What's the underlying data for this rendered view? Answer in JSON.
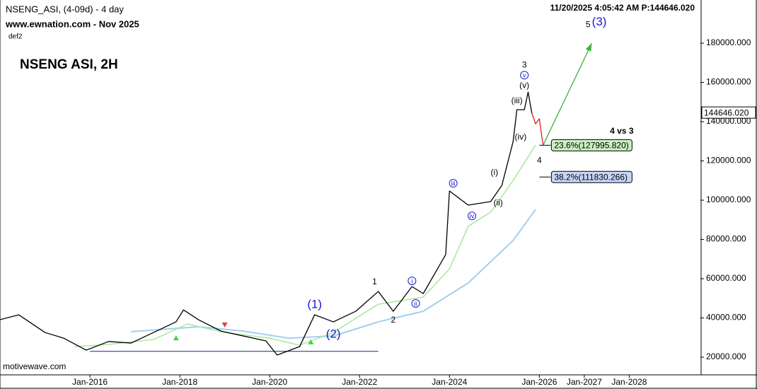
{
  "chart_data": {
    "type": "line",
    "header": {
      "symbol": "NSENG_ASI, (4-09d) - 4 day",
      "source": "www.ewnation.com  - Nov 2025",
      "layout": "def2",
      "title": "NSENG ASI, 2H",
      "status": "11/20/2025 4:05:42 AM P:144646.020",
      "footer": "motivewave.com"
    },
    "xlim": [
      "2014-01",
      "2029-08"
    ],
    "xticks": [
      {
        "value": "2016-01",
        "label": "Jan-2016"
      },
      {
        "value": "2018-01",
        "label": "Jan-2018"
      },
      {
        "value": "2020-01",
        "label": "Jan-2020"
      },
      {
        "value": "2022-01",
        "label": "Jan-2022"
      },
      {
        "value": "2024-01",
        "label": "Jan-2024"
      },
      {
        "value": "2026-01",
        "label": "Jan-2026"
      },
      {
        "value": "2027-01",
        "label": "Jan-2027"
      },
      {
        "value": "2028-01",
        "label": "Jan-2028"
      }
    ],
    "ylim": [
      11000,
      202000
    ],
    "yticks": [
      {
        "value": 20000,
        "label": "20000.000"
      },
      {
        "value": 40000,
        "label": "40000.000"
      },
      {
        "value": 60000,
        "label": "60000.000"
      },
      {
        "value": 80000,
        "label": "80000.000"
      },
      {
        "value": 100000,
        "label": "100000.000"
      },
      {
        "value": 120000,
        "label": "120000.000"
      },
      {
        "value": 140000,
        "label": "140000.000"
      },
      {
        "value": 160000,
        "label": "160000.000"
      },
      {
        "value": 180000,
        "label": "180000.000"
      }
    ],
    "last_price": {
      "value": 144646.02,
      "label": "144646.020"
    },
    "series": [
      {
        "color": "#9fd0f0",
        "width": 2,
        "x": [
          "2016-12",
          "2018-06",
          "2019-06",
          "2020-06",
          "2021-06",
          "2022-06",
          "2023-06",
          "2024-06",
          "2025-06",
          "2025-12"
        ],
        "values": [
          33000,
          35500,
          33300,
          29700,
          30800,
          38000,
          43400,
          57800,
          79500,
          95300
        ]
      },
      {
        "color": "#a8e89a",
        "width": 1.5,
        "x": [
          "2015-09",
          "2016-06",
          "2017-06",
          "2018-03",
          "2019-01",
          "2020-01",
          "2020-09",
          "2021-06",
          "2022-06",
          "2023-06",
          "2024-01",
          "2024-06",
          "2024-12",
          "2025-06",
          "2025-12"
        ],
        "values": [
          25400,
          26500,
          29000,
          36900,
          32600,
          29700,
          26100,
          32600,
          47000,
          50600,
          65000,
          86700,
          93900,
          110100,
          128100
        ]
      },
      {
        "color": "#000000",
        "width": 1.3,
        "x": [
          "2014-01",
          "2014-06",
          "2015-01",
          "2015-06",
          "2015-12",
          "2016-06",
          "2016-12",
          "2017-06",
          "2017-12",
          "2018-02",
          "2018-06",
          "2018-12",
          "2019-06",
          "2019-12",
          "2020-03",
          "2020-09",
          "2021-01",
          "2021-06",
          "2021-12",
          "2022-06",
          "2022-10",
          "2023-03",
          "2023-06",
          "2023-12",
          "2024-01",
          "2024-06",
          "2024-12",
          "2025-03",
          "2025-06",
          "2025-07",
          "2025-09",
          "2025-10",
          "2025-11"
        ],
        "values": [
          39100,
          41600,
          32600,
          29700,
          23600,
          28000,
          27200,
          32600,
          38000,
          44100,
          39100,
          33300,
          30800,
          28300,
          21100,
          25400,
          41600,
          38000,
          43400,
          53500,
          43400,
          56000,
          52400,
          72300,
          104700,
          97500,
          99300,
          107600,
          129900,
          146100,
          146100,
          155100,
          144300
        ]
      },
      {
        "color": "#e02020",
        "width": 1.3,
        "x": [
          "2025-11",
          "2025-12",
          "2026-01",
          "2026-02"
        ],
        "values": [
          144300,
          138900,
          141500,
          128000
        ]
      }
    ],
    "arrow": {
      "color": "#3cb43c",
      "x": [
        "2026-02",
        "2027-03"
      ],
      "y": [
        128000,
        180000
      ]
    },
    "support": {
      "color": "#1a237e",
      "x": [
        "2016-01",
        "2022-06"
      ],
      "y": 23000
    },
    "fib_levels": [
      {
        "value": 127995.82,
        "label": "23.6%(127995.820)",
        "fill": "#c8f0c0"
      },
      {
        "value": 111830.266,
        "label": "38.2%(111830.266)",
        "fill": "#c8d4f8"
      }
    ],
    "fib_title": {
      "text": "4 vs 3",
      "x": "2027-11",
      "y": 135000
    },
    "markers": [
      {
        "shape": "up",
        "color": "#44d444",
        "x": "2017-12",
        "y": 29700
      },
      {
        "shape": "up",
        "color": "#44d444",
        "x": "2020-12",
        "y": 27600
      },
      {
        "shape": "down",
        "color": "#e04040",
        "x": "2019-01",
        "y": 36600
      }
    ],
    "annotations": [
      {
        "text": "(1)",
        "x": "2021-01",
        "y": 47000,
        "color": "#1a1ad0",
        "size": 17
      },
      {
        "text": "(2)",
        "x": "2021-06",
        "y": 31900,
        "color": "#1a1ad0",
        "size": 17
      },
      {
        "text": "1",
        "x": "2022-05",
        "y": 58600,
        "color": "#000000",
        "size": 12
      },
      {
        "text": "2",
        "x": "2022-10",
        "y": 39100,
        "color": "#000000",
        "size": 12
      },
      {
        "text": "i",
        "x": "2023-03",
        "y": 58900,
        "color": "#1a1ad0",
        "size": 9,
        "circled": true
      },
      {
        "text": "ii",
        "x": "2023-04",
        "y": 47400,
        "color": "#1a1ad0",
        "size": 9,
        "circled": true
      },
      {
        "text": "iii",
        "x": "2024-02",
        "y": 108600,
        "color": "#1a1ad0",
        "size": 9,
        "circled": true
      },
      {
        "text": "iv",
        "x": "2024-07",
        "y": 92000,
        "color": "#1a1ad0",
        "size": 9,
        "circled": true
      },
      {
        "text": "(i)",
        "x": "2025-01",
        "y": 114400,
        "color": "#000000",
        "size": 12
      },
      {
        "text": "(ii)",
        "x": "2025-02",
        "y": 98900,
        "color": "#000000",
        "size": 12
      },
      {
        "text": "(iii)",
        "x": "2025-07",
        "y": 150800,
        "color": "#000000",
        "size": 12
      },
      {
        "text": "(iv)",
        "x": "2025-08",
        "y": 132400,
        "color": "#000000",
        "size": 12
      },
      {
        "text": "(v)",
        "x": "2025-09",
        "y": 158700,
        "color": "#000000",
        "size": 12
      },
      {
        "text": "v",
        "x": "2025-09",
        "y": 163700,
        "color": "#1a1ad0",
        "size": 9,
        "circled": true
      },
      {
        "text": "3",
        "x": "2025-09",
        "y": 169100,
        "color": "#000000",
        "size": 12
      },
      {
        "text": "4",
        "x": "2026-01",
        "y": 120500,
        "color": "#000000",
        "size": 12
      },
      {
        "text": "5",
        "x": "2027-02",
        "y": 189600,
        "color": "#000000",
        "size": 12
      },
      {
        "text": "(3)",
        "x": "2027-05",
        "y": 191000,
        "color": "#1a1ad0",
        "size": 17
      }
    ]
  }
}
